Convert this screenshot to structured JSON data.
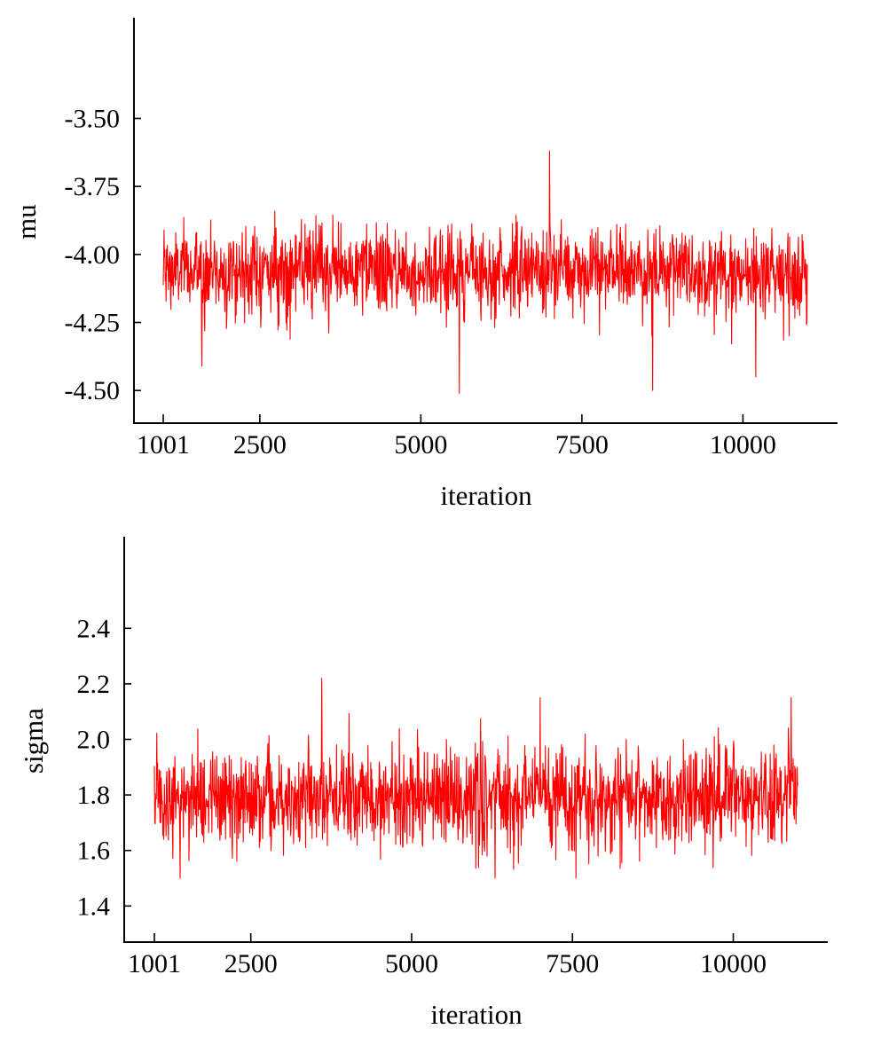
{
  "trace_color": "#ff0000",
  "chart_data": [
    {
      "type": "line",
      "title": "",
      "xlabel": "iteration",
      "ylabel": "mu",
      "xlim": [
        1001,
        11000
      ],
      "ylim": [
        -4.62,
        -3.13
      ],
      "xticks": [
        1001,
        2500,
        5000,
        7500,
        10000
      ],
      "xtick_labels": [
        "1001",
        "2500",
        "5000",
        "7500",
        "10000"
      ],
      "yticks": [
        -3.5,
        -3.75,
        -4.0,
        -4.25,
        -4.5
      ],
      "ytick_labels": [
        "-3.50",
        "-3.75",
        "-4.00",
        "-4.25",
        "-4.50"
      ],
      "grid": false,
      "series": [
        {
          "mean": -4.06,
          "sd": 0.08,
          "min": -4.51,
          "max": -3.62,
          "iterations": [
            1001,
            11000
          ],
          "notable_points": [
            {
              "x": 5600,
              "y": -4.51
            },
            {
              "x": 7000,
              "y": -3.62
            },
            {
              "x": 8600,
              "y": -4.5
            },
            {
              "x": 1600,
              "y": -4.41
            },
            {
              "x": 10200,
              "y": -4.45
            }
          ]
        }
      ]
    },
    {
      "type": "line",
      "title": "",
      "xlabel": "iteration",
      "ylabel": "sigma",
      "xlim": [
        1001,
        11000
      ],
      "ylim": [
        1.27,
        2.73
      ],
      "xticks": [
        1001,
        2500,
        5000,
        7500,
        10000
      ],
      "xtick_labels": [
        "1001",
        "2500",
        "5000",
        "7500",
        "10000"
      ],
      "yticks": [
        2.4,
        2.2,
        2.0,
        1.8,
        1.6,
        1.4
      ],
      "ytick_labels": [
        "2.4",
        "2.2",
        "2.0",
        "1.8",
        "1.6",
        "1.4"
      ],
      "grid": false,
      "series": [
        {
          "mean": 1.79,
          "sd": 0.09,
          "min": 1.5,
          "max": 2.22,
          "iterations": [
            1001,
            11000
          ],
          "notable_points": [
            {
              "x": 3600,
              "y": 2.22
            },
            {
              "x": 7000,
              "y": 2.15
            },
            {
              "x": 10900,
              "y": 2.15
            },
            {
              "x": 1400,
              "y": 1.5
            },
            {
              "x": 6300,
              "y": 1.5
            }
          ]
        }
      ]
    }
  ]
}
